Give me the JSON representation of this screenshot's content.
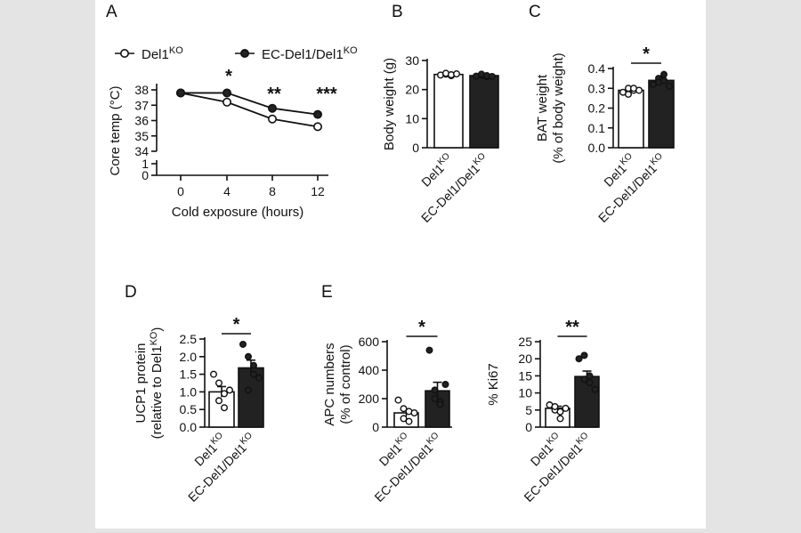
{
  "panel_labels": [
    "A",
    "B",
    "C",
    "D",
    "E"
  ],
  "genotypes": {
    "ko": "Del1",
    "ecko": "EC-Del1/Del1",
    "sup": "KO"
  },
  "colors": {
    "ko_fill": "#ffffff",
    "ecko_fill": "#222222",
    "stroke": "#111111",
    "background": "#e4e4e4"
  },
  "chart_data": [
    {
      "panel": "A",
      "type": "line",
      "xlabel": "Cold exposure (hours)",
      "ylabel": "Core temp (°C)",
      "x": [
        0,
        4,
        8,
        12
      ],
      "xticks": [
        "0",
        "4",
        "8",
        "12"
      ],
      "yticks_lower": [
        "0",
        "1"
      ],
      "yticks_upper": [
        "34",
        "35",
        "36",
        "37",
        "38"
      ],
      "ylim": [
        0,
        38
      ],
      "axis_break": true,
      "legend": [
        "Del1KO",
        "EC-Del1/Del1KO"
      ],
      "series": [
        {
          "name": "Del1KO",
          "marker": "open-circle",
          "values": [
            37.8,
            37.2,
            36.1,
            35.6
          ]
        },
        {
          "name": "EC-Del1/Del1KO",
          "marker": "filled-circle",
          "values": [
            37.8,
            37.8,
            36.8,
            36.4
          ]
        }
      ],
      "significance": [
        "",
        "*",
        "**",
        "***"
      ]
    },
    {
      "panel": "B",
      "type": "bar",
      "ylabel": "Body weight (g)",
      "ylim": [
        0,
        30
      ],
      "yticks": [
        "0",
        "10",
        "20",
        "30"
      ],
      "categories": [
        "Del1KO",
        "EC-Del1/Del1KO"
      ],
      "values": [
        25.2,
        24.8
      ],
      "sem": [
        0.3,
        0.3
      ],
      "points": [
        [
          25.0,
          25.3,
          24.8,
          25.6,
          25.1,
          25.4
        ],
        [
          24.6,
          25.0,
          24.4,
          25.3,
          24.8,
          24.5
        ]
      ],
      "significance": ""
    },
    {
      "panel": "C",
      "type": "bar",
      "ylabel": "BAT weight",
      "ylabel2": "(% of body weight)",
      "ylim": [
        0,
        0.4
      ],
      "yticks": [
        "0.0",
        "0.1",
        "0.2",
        "0.3",
        "0.4"
      ],
      "categories": [
        "Del1KO",
        "EC-Del1/Del1KO"
      ],
      "values": [
        0.29,
        0.34
      ],
      "sem": [
        0.008,
        0.014
      ],
      "points": [
        [
          0.28,
          0.3,
          0.29,
          0.27,
          0.3,
          0.29
        ],
        [
          0.32,
          0.35,
          0.37,
          0.33,
          0.34,
          0.31
        ]
      ],
      "significance": "*"
    },
    {
      "panel": "D",
      "type": "bar",
      "ylabel": "UCP1 protein",
      "ylabel2": "(relative to Del1KO)",
      "ylim": [
        0,
        2.5
      ],
      "yticks": [
        "0.0",
        "0.5",
        "1.0",
        "1.5",
        "2.0",
        "2.5"
      ],
      "categories": [
        "Del1KO",
        "EC-Del1/Del1KO"
      ],
      "values": [
        1.0,
        1.68
      ],
      "sem": [
        0.15,
        0.22
      ],
      "points": [
        [
          1.5,
          1.25,
          0.95,
          0.75,
          0.55,
          1.05
        ],
        [
          2.35,
          2.0,
          1.5,
          1.05,
          1.75,
          1.4
        ]
      ],
      "significance": "*"
    },
    {
      "panel": "E",
      "type": "bar",
      "ylabel": "APC numbers",
      "ylabel2": "(% of control)",
      "ylim": [
        0,
        600
      ],
      "yticks": [
        "0",
        "200",
        "400",
        "600"
      ],
      "categories": [
        "Del1KO",
        "EC-Del1/Del1KO"
      ],
      "values": [
        100,
        255
      ],
      "sem": [
        25,
        60
      ],
      "points": [
        [
          190,
          130,
          110,
          60,
          40,
          100
        ],
        [
          540,
          260,
          180,
          200,
          160,
          300
        ]
      ],
      "significance": "*"
    },
    {
      "panel": "E",
      "type": "bar",
      "ylabel": "% Ki67",
      "ylim": [
        0,
        25
      ],
      "yticks": [
        "0",
        "5",
        "10",
        "15",
        "20",
        "25"
      ],
      "categories": [
        "Del1KO",
        "EC-Del1/Del1KO"
      ],
      "values": [
        5.5,
        14.8
      ],
      "sem": [
        0.6,
        1.6
      ],
      "points": [
        [
          6.5,
          5.0,
          4.5,
          6.0,
          2.5,
          5.5
        ],
        [
          20.0,
          21.0,
          13.0,
          14.0,
          15.0,
          11.0
        ]
      ],
      "significance": "**"
    }
  ]
}
